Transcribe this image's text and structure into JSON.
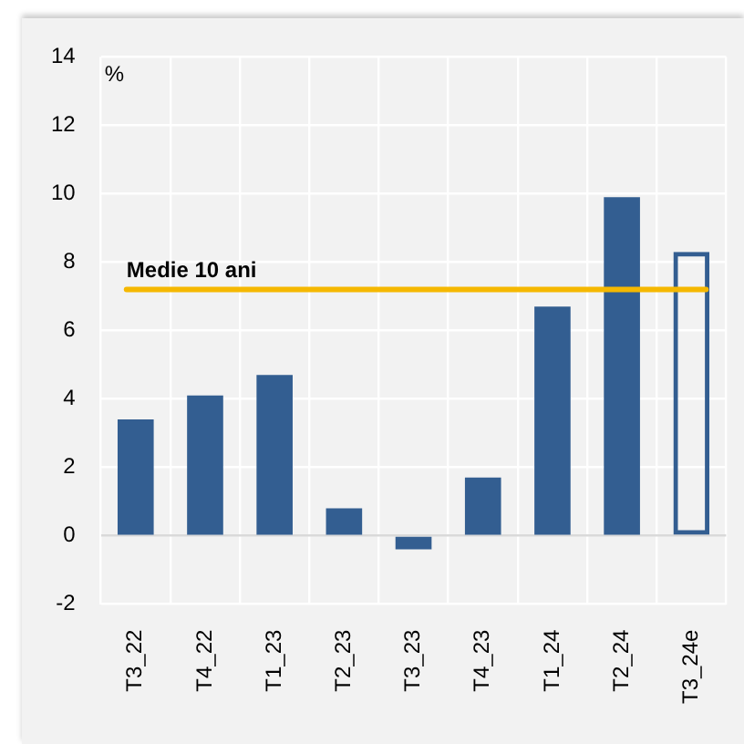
{
  "chart_data": {
    "type": "bar",
    "ylabel": "%",
    "categories": [
      "T3_22",
      "T4_22",
      "T1_23",
      "T2_23",
      "T3_23",
      "T4_23",
      "T1_24",
      "T2_24",
      "T3_24e"
    ],
    "series": [
      {
        "color": "#335e91",
        "values": [
          3.4,
          4.1,
          4.7,
          0.8,
          -0.4,
          1.7,
          6.7,
          9.9,
          null
        ]
      },
      {
        "color": "#335e91",
        "values": [
          null,
          null,
          null,
          null,
          null,
          null,
          null,
          null,
          8.3
        ]
      }
    ],
    "ylim": [
      -2,
      14
    ],
    "yticks": [
      -2,
      0,
      2,
      4,
      6,
      8,
      10,
      12,
      14
    ],
    "grid": true,
    "ref_lines": [
      {
        "axis": "y",
        "value": 7.2,
        "label": "Medie 10 ani",
        "color": "#f5b800"
      }
    ]
  }
}
